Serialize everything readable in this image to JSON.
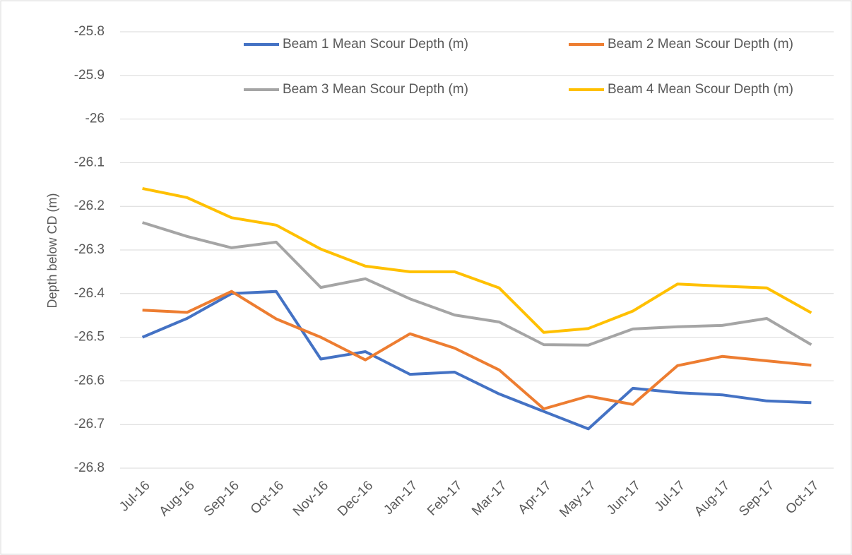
{
  "chart_data": {
    "type": "line",
    "y_label": "Depth below CD (m)",
    "categories": [
      "Jul-16",
      "Aug-16",
      "Sep-16",
      "Oct-16",
      "Nov-16",
      "Dec-16",
      "Jan-17",
      "Feb-17",
      "Mar-17",
      "Apr-17",
      "May-17",
      "Jun-17",
      "Jul-17",
      "Aug-17",
      "Sep-17",
      "Oct-17"
    ],
    "series": [
      {
        "name": "Beam 1 Mean Scour Depth (m)",
        "color": "#4472c4",
        "values": [
          -26.5,
          -26.457,
          -26.4,
          -26.395,
          -26.55,
          -26.533,
          -26.585,
          -26.58,
          -26.63,
          -26.67,
          -26.71,
          -26.617,
          -26.627,
          -26.632,
          -26.646,
          -26.65
        ]
      },
      {
        "name": "Beam 2 Mean Scour Depth (m)",
        "color": "#ed7d31",
        "values": [
          -26.438,
          -26.443,
          -26.395,
          -26.458,
          -26.5,
          -26.552,
          -26.492,
          -26.525,
          -26.575,
          -26.664,
          -26.635,
          -26.654,
          -26.565,
          -26.544,
          -26.554,
          -26.564
        ]
      },
      {
        "name": "Beam 3 Mean Scour Depth (m)",
        "color": "#a5a5a5",
        "values": [
          -26.237,
          -26.269,
          -26.295,
          -26.282,
          -26.386,
          -26.366,
          -26.412,
          -26.449,
          -26.465,
          -26.517,
          -26.518,
          -26.481,
          -26.476,
          -26.473,
          -26.457,
          -26.517
        ]
      },
      {
        "name": "Beam 4 Mean Scour Depth (m)",
        "color": "#ffc000",
        "values": [
          -26.159,
          -26.18,
          -26.226,
          -26.243,
          -26.298,
          -26.337,
          -26.35,
          -26.35,
          -26.387,
          -26.489,
          -26.48,
          -26.44,
          -26.378,
          -26.383,
          -26.387,
          -26.444
        ]
      }
    ],
    "ylim": [
      -26.8,
      -25.8
    ],
    "yticks": [
      -25.8,
      -25.9,
      -26,
      -26.1,
      -26.2,
      -26.3,
      -26.4,
      -26.5,
      -26.6,
      -26.7,
      -26.8
    ],
    "grid": true,
    "legend": "top"
  }
}
